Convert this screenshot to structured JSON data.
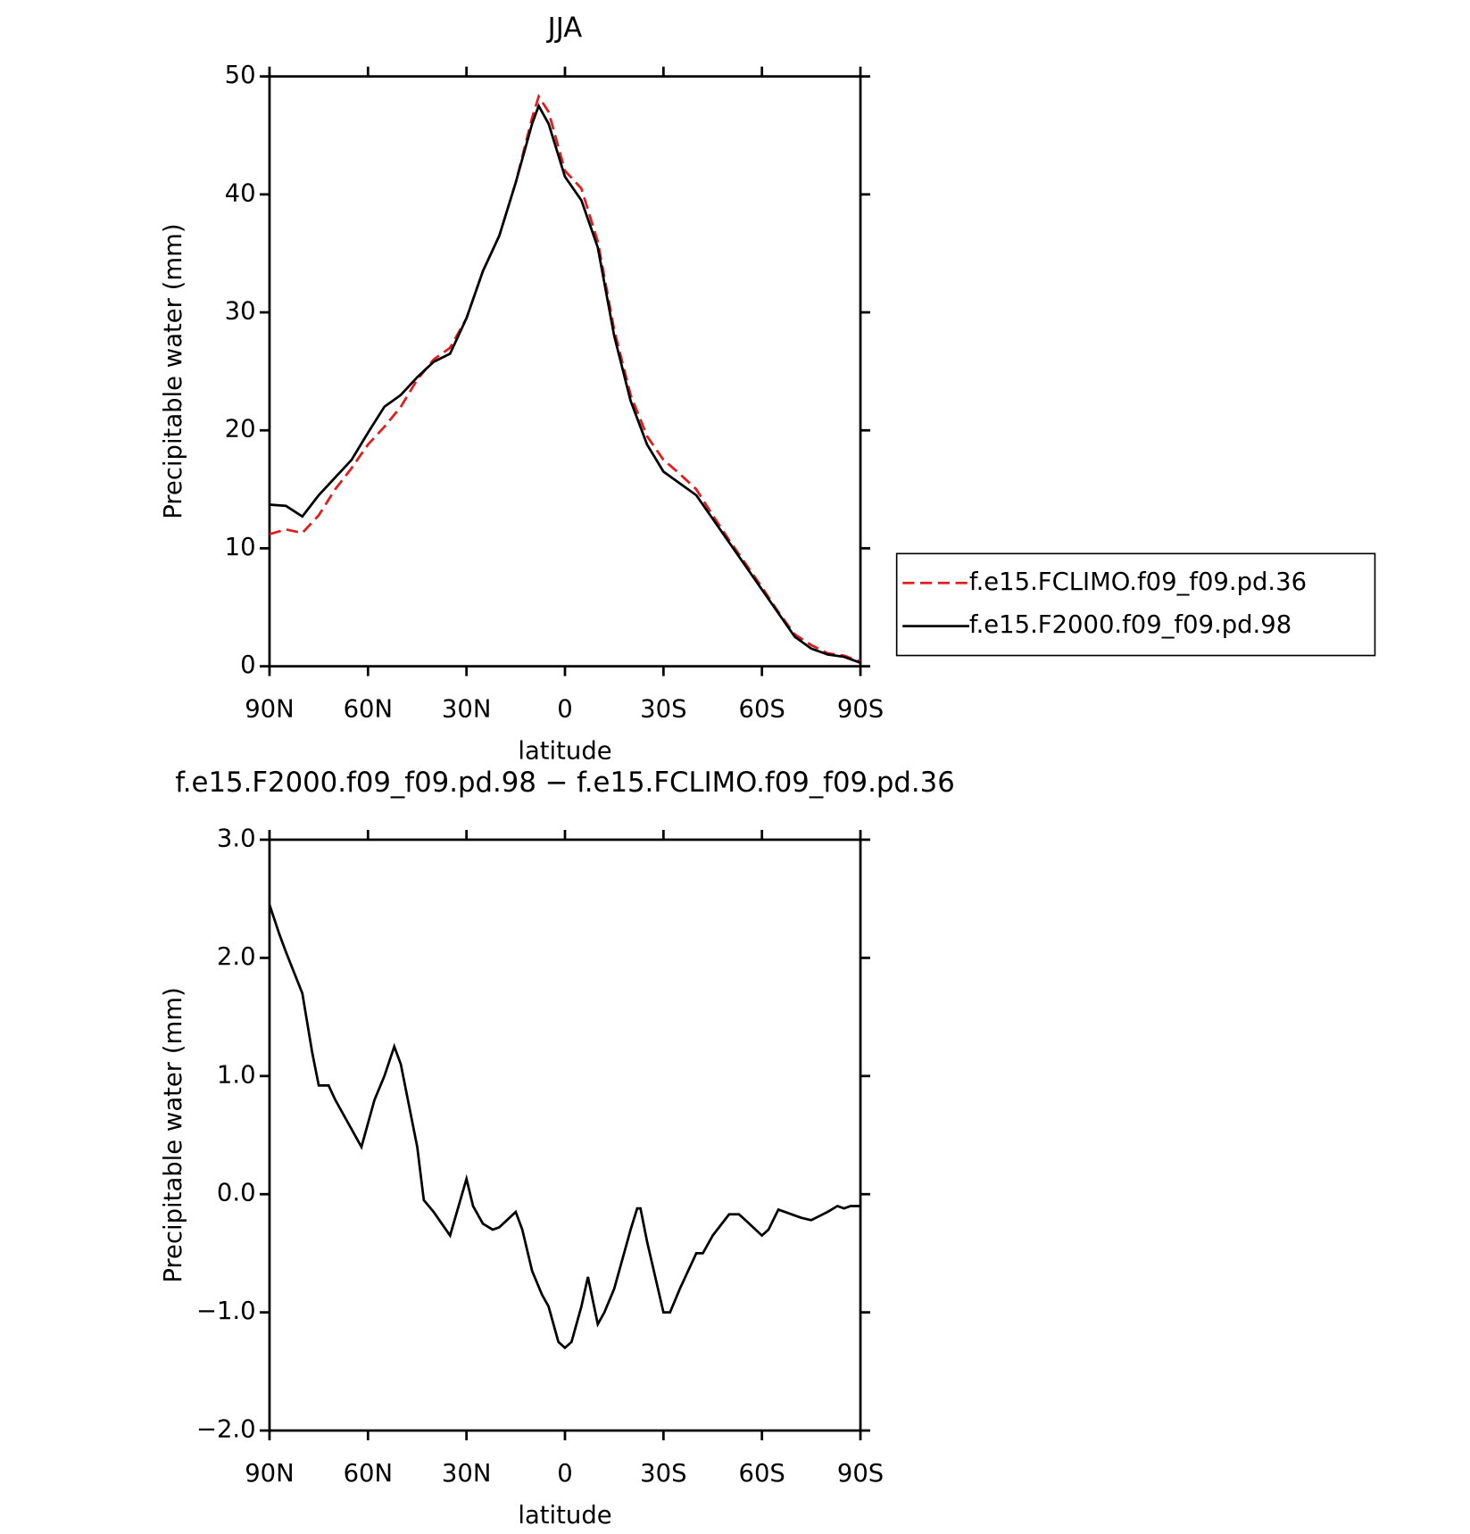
{
  "chart_data": [
    {
      "type": "line",
      "title": "JJA",
      "xlabel": "latitude",
      "ylabel": "Precipitable water (mm)",
      "xlim": [
        90,
        -90
      ],
      "ylim": [
        0,
        50
      ],
      "xticks": [
        {
          "value": 90,
          "label": "90N"
        },
        {
          "value": 60,
          "label": "60N"
        },
        {
          "value": 30,
          "label": "30N"
        },
        0,
        {
          "value": -30,
          "label": "30S"
        },
        {
          "value": -60,
          "label": "60S"
        },
        {
          "value": -90,
          "label": "90S"
        }
      ],
      "yticks": [
        0,
        10,
        20,
        30,
        40,
        50
      ],
      "legend": "right",
      "x": [
        90,
        85,
        80,
        75,
        70,
        65,
        60,
        55,
        50,
        45,
        40,
        35,
        30,
        25,
        20,
        15,
        10,
        8,
        5,
        0,
        -5,
        -10,
        -15,
        -20,
        -25,
        -30,
        -35,
        -40,
        -45,
        -50,
        -55,
        -60,
        -65,
        -70,
        -75,
        -80,
        -85,
        -90
      ],
      "series": [
        {
          "name": "f.e15.FCLIMO.f09_f09.pd.36",
          "color": "#e41a1c",
          "line_style": "dashed",
          "values": [
            11.2,
            11.6,
            11.3,
            12.8,
            15,
            16.8,
            18.8,
            20.3,
            22,
            24.3,
            26,
            27,
            29.5,
            33.5,
            36.5,
            41,
            46.5,
            48.3,
            47,
            42,
            40.5,
            36,
            28.5,
            23,
            19.5,
            17.5,
            16.3,
            15,
            12.8,
            10.7,
            8.7,
            6.7,
            4.6,
            2.7,
            1.8,
            1.1,
            0.9,
            0.4
          ]
        },
        {
          "name": "f.e15.F2000.f09_f09.pd.98",
          "color": "#000000",
          "line_style": "solid",
          "values": [
            13.7,
            13.6,
            12.7,
            14.5,
            16,
            17.5,
            19.8,
            22,
            23,
            24.5,
            25.8,
            26.5,
            29.5,
            33.5,
            36.5,
            41,
            46,
            47.5,
            46,
            41.5,
            39.5,
            35.5,
            28,
            22.5,
            18.8,
            16.5,
            15.5,
            14.5,
            12.5,
            10.5,
            8.5,
            6.5,
            4.5,
            2.5,
            1.5,
            1,
            0.8,
            0.3
          ]
        }
      ]
    },
    {
      "type": "line",
      "title": "f.e15.F2000.f09_f09.pd.98 − f.e15.FCLIMO.f09_f09.pd.36",
      "xlabel": "latitude",
      "ylabel": "Precipitable water (mm)",
      "xlim": [
        90,
        -90
      ],
      "ylim": [
        -2,
        3
      ],
      "xticks": [
        {
          "value": 90,
          "label": "90N"
        },
        {
          "value": 60,
          "label": "60N"
        },
        {
          "value": 30,
          "label": "30N"
        },
        0,
        {
          "value": -30,
          "label": "30S"
        },
        {
          "value": -60,
          "label": "60S"
        },
        {
          "value": -90,
          "label": "90S"
        }
      ],
      "yticks": [
        {
          "value": -2,
          "label": "−2.0"
        },
        {
          "value": -1,
          "label": "−1.0"
        },
        {
          "value": 0,
          "label": "0.0"
        },
        {
          "value": 1,
          "label": "1.0"
        },
        {
          "value": 2,
          "label": "2.0"
        },
        {
          "value": 3,
          "label": "3.0"
        }
      ],
      "x": [
        90,
        87,
        85,
        80,
        77,
        75,
        72,
        70,
        65,
        62,
        58,
        55,
        52,
        50,
        45,
        43,
        40,
        35,
        30,
        28,
        25,
        22,
        20,
        15,
        13,
        10,
        7,
        5,
        2,
        0,
        -2,
        -5,
        -7,
        -10,
        -12,
        -15,
        -20,
        -22,
        -23,
        -25,
        -30,
        -32,
        -35,
        -40,
        -42,
        -45,
        -50,
        -53,
        -55,
        -60,
        -62,
        -65,
        -70,
        -72,
        -75,
        -80,
        -83,
        -85,
        -87,
        -90
      ],
      "series": [
        {
          "color": "#000000",
          "line_style": "solid",
          "values": [
            2.45,
            2.2,
            2.05,
            1.7,
            1.2,
            0.92,
            0.92,
            0.8,
            0.55,
            0.4,
            0.8,
            1.0,
            1.25,
            1.1,
            0.4,
            -0.05,
            -0.15,
            -0.35,
            0.13,
            -0.1,
            -0.25,
            -0.3,
            -0.28,
            -0.15,
            -0.3,
            -0.65,
            -0.85,
            -0.95,
            -1.25,
            -1.3,
            -1.25,
            -0.95,
            -0.7,
            -1.1,
            -1.0,
            -0.8,
            -0.3,
            -0.12,
            -0.12,
            -0.4,
            -1.0,
            -1.0,
            -0.8,
            -0.5,
            -0.5,
            -0.35,
            -0.17,
            -0.17,
            -0.22,
            -0.35,
            -0.3,
            -0.13,
            -0.18,
            -0.2,
            -0.22,
            -0.15,
            -0.1,
            -0.12,
            -0.1,
            -0.1
          ]
        }
      ]
    }
  ]
}
